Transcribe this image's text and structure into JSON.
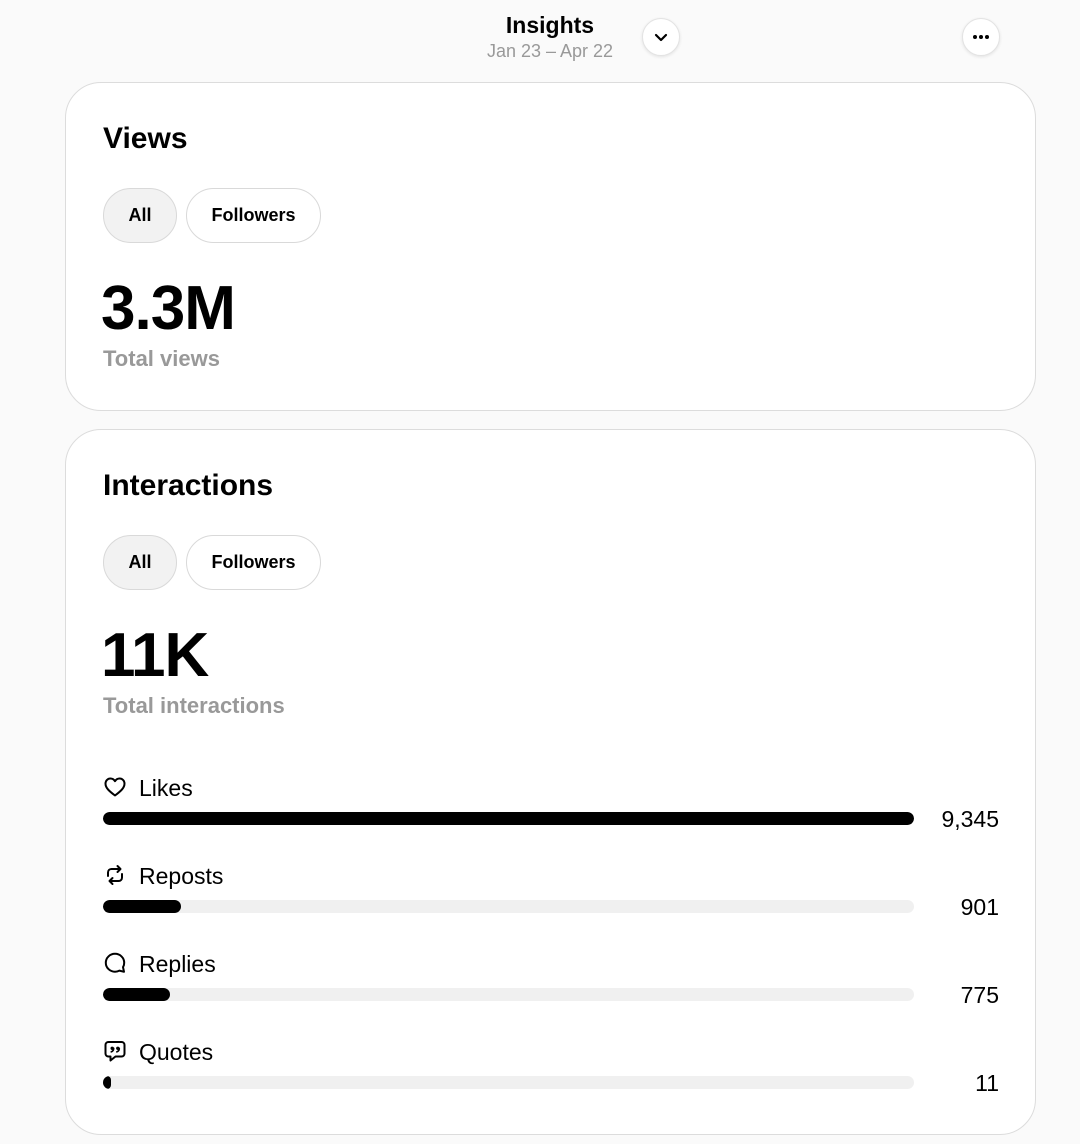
{
  "header": {
    "title": "Insights",
    "date_range": "Jan 23 – Apr 22",
    "icons": {
      "dropdown": "chevron-down-icon",
      "more": "more-horizontal-icon"
    }
  },
  "views": {
    "title": "Views",
    "filters": [
      {
        "label": "All",
        "active": true
      },
      {
        "label": "Followers",
        "active": false
      }
    ],
    "total": "3.3M",
    "total_label": "Total views"
  },
  "interactions": {
    "title": "Interactions",
    "filters": [
      {
        "label": "All",
        "active": true
      },
      {
        "label": "Followers",
        "active": false
      }
    ],
    "total": "11K",
    "total_label": "Total interactions",
    "max_value": 9345,
    "metrics": [
      {
        "label": "Likes",
        "value": 9345,
        "display": "9,345",
        "icon": "heart-icon"
      },
      {
        "label": "Reposts",
        "value": 901,
        "display": "901",
        "icon": "repost-icon"
      },
      {
        "label": "Replies",
        "value": 775,
        "display": "775",
        "icon": "reply-bubble-icon"
      },
      {
        "label": "Quotes",
        "value": 11,
        "display": "11",
        "icon": "quote-bubble-icon"
      }
    ]
  },
  "colors": {
    "accent": "#000000",
    "track": "#f0f0f0",
    "muted_text": "#999999",
    "card_bg": "#ffffff",
    "page_bg": "#fafafa"
  }
}
